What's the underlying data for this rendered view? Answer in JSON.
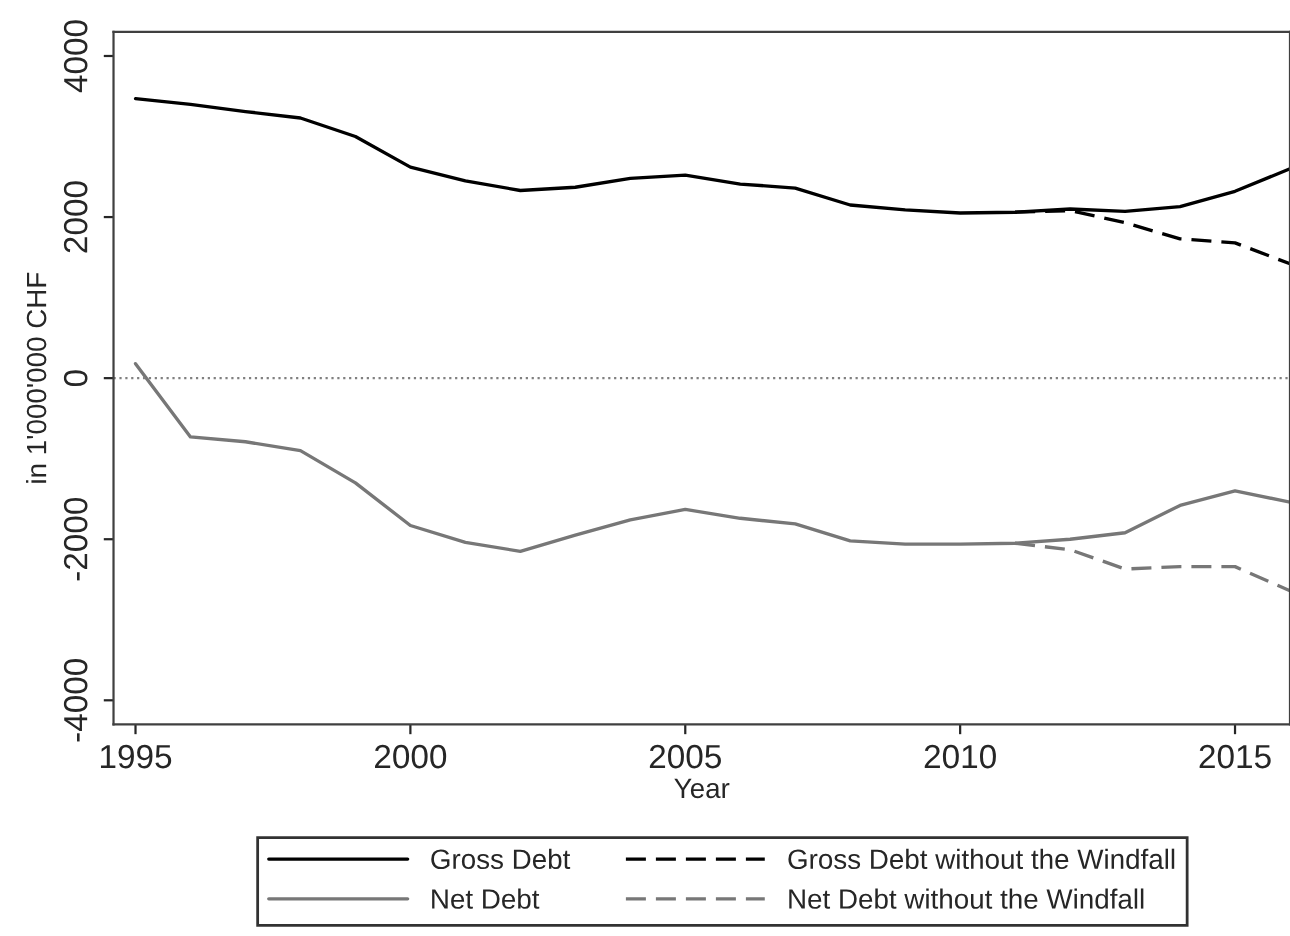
{
  "chart_data": {
    "type": "line",
    "xlabel": "Year",
    "ylabel": "in 1'000'000 CHF",
    "xlim": [
      1994.6,
      2016
    ],
    "xticks": [
      1995,
      2000,
      2005,
      2010,
      2015
    ],
    "ylim": [
      -4300,
      4300
    ],
    "yticks": [
      -4000,
      -2000,
      0,
      2000,
      4000
    ],
    "grid": false,
    "legend": "bottom",
    "marker": "none",
    "ref_lines": [
      {
        "axis": "y",
        "value": 0,
        "color": "#808080",
        "line_style": "dotted"
      }
    ],
    "series": [
      {
        "name": "Gross Debt",
        "color": "#000000",
        "line_style": "solid",
        "x": [
          1995,
          1996,
          1997,
          1998,
          1999,
          2000,
          2001,
          2002,
          2003,
          2004,
          2005,
          2006,
          2007,
          2008,
          2009,
          2010,
          2011,
          2012,
          2013,
          2014,
          2015,
          2016
        ],
        "values": [
          3470,
          3400,
          3310,
          3230,
          3000,
          2620,
          2450,
          2330,
          2370,
          2480,
          2520,
          2410,
          2360,
          2150,
          2090,
          2050,
          2060,
          2100,
          2070,
          2130,
          2320,
          2600
        ]
      },
      {
        "name": "Net Debt",
        "color": "#777777",
        "line_style": "solid",
        "x": [
          1995,
          1996,
          1997,
          1998,
          1999,
          2000,
          2001,
          2002,
          2003,
          2004,
          2005,
          2006,
          2007,
          2008,
          2009,
          2010,
          2011,
          2012,
          2013,
          2014,
          2015,
          2016
        ],
        "values": [
          180,
          -730,
          -790,
          -900,
          -1300,
          -1830,
          -2040,
          -2150,
          -1950,
          -1760,
          -1630,
          -1740,
          -1810,
          -2020,
          -2060,
          -2060,
          -2050,
          -2000,
          -1920,
          -1580,
          -1400,
          -1540
        ]
      },
      {
        "name": "Gross Debt without the Windfall",
        "color": "#000000",
        "line_style": "dashed",
        "x": [
          2011,
          2012,
          2013,
          2014,
          2015,
          2016
        ],
        "values": [
          2060,
          2080,
          1930,
          1730,
          1680,
          1420
        ]
      },
      {
        "name": "Net Debt without the Windfall",
        "color": "#777777",
        "line_style": "dashed",
        "x": [
          2011,
          2012,
          2013,
          2014,
          2015,
          2016
        ],
        "values": [
          -2050,
          -2130,
          -2370,
          -2340,
          -2340,
          -2640
        ]
      }
    ]
  }
}
